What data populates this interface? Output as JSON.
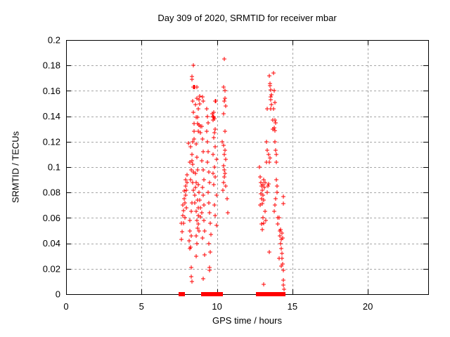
{
  "window": {
    "background": "#ffffff"
  },
  "colors": {
    "marker": "#ff0000",
    "grid": "#a6a6a6",
    "axis": "#000000",
    "text": "#000000"
  },
  "chart_data": {
    "type": "scatter",
    "title": "Day 309 of 2020, SRMTID for receiver mbar",
    "xlabel": "GPS time / hours",
    "ylabel": "SRMTID / TECUs",
    "xlim": [
      0,
      24
    ],
    "ylim": [
      0,
      0.2
    ],
    "grid": true,
    "legend_position": "none",
    "xticks": {
      "values": [
        0,
        5,
        10,
        15,
        20
      ],
      "labels": [
        "0",
        "5",
        "10",
        "15",
        "20"
      ]
    },
    "yticks": {
      "values": [
        0,
        0.02,
        0.04,
        0.06,
        0.08,
        0.1,
        0.12,
        0.14,
        0.16,
        0.18,
        0.2
      ],
      "labels": [
        "0",
        "0.02",
        "0.04",
        "0.06",
        "0.08",
        "0.1",
        "0.12",
        "0.14",
        "0.16",
        "0.18",
        "0.2"
      ]
    },
    "series": [
      {
        "marker": "plus",
        "color": "#ff0000",
        "points": [
          [
            7.62,
            0.043
          ],
          [
            7.66,
            0.056
          ],
          [
            7.7,
            0.049
          ],
          [
            7.72,
            0.062
          ],
          [
            7.75,
            0.07
          ],
          [
            7.77,
            0.056
          ],
          [
            7.8,
            0.066
          ],
          [
            7.82,
            0.075
          ],
          [
            7.84,
            0.081
          ],
          [
            7.86,
            0.06
          ],
          [
            7.88,
            0.072
          ],
          [
            7.9,
            0.085
          ],
          [
            7.92,
            0.078
          ],
          [
            7.94,
            0.09
          ],
          [
            7.96,
            0.068
          ],
          [
            7.98,
            0.082
          ],
          [
            8.0,
            0.094
          ],
          [
            8.02,
            0.088
          ],
          [
            8.12,
            0.119
          ],
          [
            8.15,
            0.042
          ],
          [
            8.18,
            0.036
          ],
          [
            8.2,
            0.05
          ],
          [
            8.2,
            0.104
          ],
          [
            8.22,
            0.058
          ],
          [
            8.24,
            0.116
          ],
          [
            8.25,
            0.037
          ],
          [
            8.25,
            0.09
          ],
          [
            8.28,
            0.046
          ],
          [
            8.28,
            0.098
          ],
          [
            8.29,
            0.021
          ],
          [
            8.3,
            0.014
          ],
          [
            8.3,
            0.065
          ],
          [
            8.31,
            0.021
          ],
          [
            8.32,
            0.072
          ],
          [
            8.33,
            0.105
          ],
          [
            8.34,
            0.01
          ],
          [
            8.34,
            0.171
          ],
          [
            8.36,
            0.11
          ],
          [
            8.36,
            0.169
          ],
          [
            8.38,
            0.088
          ],
          [
            8.38,
            0.152
          ],
          [
            8.4,
            0.102
          ],
          [
            8.4,
            0.12
          ],
          [
            8.42,
            0.082
          ],
          [
            8.42,
            0.18
          ],
          [
            8.43,
            0.163
          ],
          [
            8.44,
            0.096
          ],
          [
            8.45,
            0.143
          ],
          [
            8.46,
            0.128
          ],
          [
            8.48,
            0.134
          ],
          [
            8.48,
            0.163
          ],
          [
            8.5,
            0.122
          ],
          [
            8.52,
            0.078
          ],
          [
            8.55,
            0.072
          ],
          [
            8.55,
            0.163
          ],
          [
            8.56,
            0.084
          ],
          [
            8.58,
            0.095
          ],
          [
            8.58,
            0.149
          ],
          [
            8.6,
            0.046
          ],
          [
            8.6,
            0.065
          ],
          [
            8.6,
            0.139
          ],
          [
            8.62,
            0.03
          ],
          [
            8.62,
            0.088
          ],
          [
            8.62,
            0.118
          ],
          [
            8.65,
            0.04
          ],
          [
            8.65,
            0.058
          ],
          [
            8.65,
            0.154
          ],
          [
            8.66,
            0.108
          ],
          [
            8.67,
            0.163
          ],
          [
            8.7,
            0.052
          ],
          [
            8.7,
            0.074
          ],
          [
            8.7,
            0.098
          ],
          [
            8.7,
            0.139
          ],
          [
            8.72,
            0.134
          ],
          [
            8.74,
            0.068
          ],
          [
            8.75,
            0.055
          ],
          [
            8.75,
            0.146
          ],
          [
            8.78,
            0.062
          ],
          [
            8.78,
            0.086
          ],
          [
            8.78,
            0.128
          ],
          [
            8.8,
            0.05
          ],
          [
            8.8,
            0.153
          ],
          [
            8.82,
            0.08
          ],
          [
            8.82,
            0.133
          ],
          [
            8.85,
            0.15
          ],
          [
            8.85,
            0.156
          ],
          [
            8.86,
            0.074
          ],
          [
            8.88,
            0.127
          ],
          [
            8.9,
            0.068
          ],
          [
            8.9,
            0.132
          ],
          [
            8.92,
            0.061
          ],
          [
            9.0,
            0.064
          ],
          [
            9.0,
            0.105
          ],
          [
            9.0,
            0.132
          ],
          [
            9.04,
            0.155
          ],
          [
            9.05,
            0.044
          ],
          [
            9.05,
            0.084
          ],
          [
            9.05,
            0.122
          ],
          [
            9.08,
            0.098
          ],
          [
            9.09,
            0.012
          ],
          [
            9.09,
            0.152
          ],
          [
            9.1,
            0.078
          ],
          [
            9.1,
            0.112
          ],
          [
            9.12,
            0.058
          ],
          [
            9.12,
            0.09
          ],
          [
            9.15,
            0.07
          ],
          [
            9.16,
            0.05
          ],
          [
            9.18,
            0.031
          ],
          [
            9.3,
            0.146
          ],
          [
            9.33,
            0.128
          ],
          [
            9.35,
            0.104
          ],
          [
            9.35,
            0.14
          ],
          [
            9.38,
            0.12
          ],
          [
            9.4,
            0.08
          ],
          [
            9.4,
            0.135
          ],
          [
            9.42,
            0.112
          ],
          [
            9.45,
            0.072
          ],
          [
            9.45,
            0.096
          ],
          [
            9.46,
            0.04
          ],
          [
            9.5,
            0.021
          ],
          [
            9.5,
            0.064
          ],
          [
            9.5,
            0.088
          ],
          [
            9.52,
            0.019
          ],
          [
            9.55,
            0.033
          ],
          [
            9.55,
            0.056
          ],
          [
            9.6,
            0.047
          ],
          [
            9.7,
            0.142
          ],
          [
            9.72,
            0.095
          ],
          [
            9.74,
            0.14
          ],
          [
            9.75,
            0.11
          ],
          [
            9.75,
            0.137
          ],
          [
            9.78,
            0.139
          ],
          [
            9.79,
            0.143
          ],
          [
            9.8,
            0.086
          ],
          [
            9.8,
            0.123
          ],
          [
            9.82,
            0.138
          ],
          [
            9.85,
            0.07
          ],
          [
            9.85,
            0.1
          ],
          [
            9.85,
            0.127
          ],
          [
            9.88,
            0.13
          ],
          [
            9.88,
            0.152
          ],
          [
            9.9,
            0.062
          ],
          [
            9.9,
            0.092
          ],
          [
            9.9,
            0.116
          ],
          [
            9.93,
            0.152
          ],
          [
            9.95,
            0.054
          ],
          [
            9.95,
            0.078
          ],
          [
            9.95,
            0.106
          ],
          [
            10.35,
            0.12
          ],
          [
            10.4,
            0.082
          ],
          [
            10.42,
            0.101
          ],
          [
            10.44,
            0.142
          ],
          [
            10.45,
            0.088
          ],
          [
            10.45,
            0.163
          ],
          [
            10.46,
            0.117
          ],
          [
            10.48,
            0.098
          ],
          [
            10.48,
            0.185
          ],
          [
            10.5,
            0.092
          ],
          [
            10.5,
            0.11
          ],
          [
            10.5,
            0.152
          ],
          [
            10.52,
            0.128
          ],
          [
            10.52,
            0.16
          ],
          [
            10.55,
            0.095
          ],
          [
            10.55,
            0.113
          ],
          [
            10.55,
            0.154
          ],
          [
            10.58,
            0.085
          ],
          [
            10.58,
            0.148
          ],
          [
            10.6,
            0.106
          ],
          [
            10.65,
            0.075
          ],
          [
            10.7,
            0.064
          ],
          [
            12.8,
            0.1
          ],
          [
            12.85,
            0.092
          ],
          [
            12.88,
            0.07
          ],
          [
            12.9,
            0.079
          ],
          [
            12.9,
            0.088
          ],
          [
            12.95,
            0.055
          ],
          [
            12.95,
            0.075
          ],
          [
            12.95,
            0.085
          ],
          [
            13.0,
            0.051
          ],
          [
            13.0,
            0.071
          ],
          [
            13.0,
            0.082
          ],
          [
            13.05,
            0.06
          ],
          [
            13.05,
            0.078
          ],
          [
            13.05,
            0.086
          ],
          [
            13.1,
            0.008
          ],
          [
            13.1,
            0.056
          ],
          [
            13.1,
            0.074
          ],
          [
            13.1,
            0.09
          ],
          [
            13.15,
            0.084
          ],
          [
            13.18,
            0.065
          ],
          [
            13.2,
            0.088
          ],
          [
            13.22,
            0.058
          ],
          [
            13.28,
            0.104
          ],
          [
            13.3,
            0.104
          ],
          [
            13.3,
            0.12
          ],
          [
            13.33,
            0.146
          ],
          [
            13.35,
            0.08
          ],
          [
            13.35,
            0.113
          ],
          [
            13.36,
            0.085
          ],
          [
            13.4,
            0.11
          ],
          [
            13.42,
            0.087
          ],
          [
            13.45,
            0.104
          ],
          [
            13.47,
            0.033
          ],
          [
            13.47,
            0.172
          ],
          [
            13.5,
            0.107
          ],
          [
            13.51,
            0.166
          ],
          [
            13.52,
            0.164
          ],
          [
            13.55,
            0.146
          ],
          [
            13.56,
            0.161
          ],
          [
            13.57,
            0.153
          ],
          [
            13.58,
            0.155
          ],
          [
            13.6,
            0.149
          ],
          [
            13.62,
            0.157
          ],
          [
            13.7,
            0.137
          ],
          [
            13.72,
            0.13
          ],
          [
            13.75,
            0.146
          ],
          [
            13.75,
            0.174
          ],
          [
            13.79,
            0.16
          ],
          [
            13.8,
            0.065
          ],
          [
            13.8,
            0.131
          ],
          [
            13.82,
            0.137
          ],
          [
            13.84,
            0.151
          ],
          [
            13.85,
            0.07
          ],
          [
            13.85,
            0.129
          ],
          [
            13.86,
            0.12
          ],
          [
            13.89,
            0.135
          ],
          [
            13.9,
            0.075
          ],
          [
            13.9,
            0.113
          ],
          [
            13.92,
            0.104
          ],
          [
            13.95,
            0.09
          ],
          [
            13.95,
            0.11
          ],
          [
            13.98,
            0.085
          ],
          [
            14.0,
            0.08
          ],
          [
            14.02,
            0.06
          ],
          [
            14.05,
            0.055
          ],
          [
            14.1,
            0.028
          ],
          [
            14.1,
            0.06
          ],
          [
            14.15,
            0.05
          ],
          [
            14.18,
            0.046
          ],
          [
            14.2,
            0.051
          ],
          [
            14.22,
            0.04
          ],
          [
            14.25,
            0.022
          ],
          [
            14.25,
            0.043
          ],
          [
            14.28,
            0.036
          ],
          [
            14.3,
            0.032
          ],
          [
            14.3,
            0.048
          ],
          [
            14.32,
            0.028
          ],
          [
            14.35,
            0.024
          ],
          [
            14.35,
            0.044
          ],
          [
            14.38,
            0.019
          ],
          [
            14.38,
            0.071
          ],
          [
            14.4,
            0.011
          ],
          [
            14.4,
            0.077
          ],
          [
            14.42,
            0.007
          ],
          [
            14.45,
            0.004
          ]
        ]
      },
      {
        "marker": "square",
        "color": "#ff0000",
        "points": [
          [
            7.6,
            0
          ],
          [
            7.66,
            0
          ],
          [
            7.72,
            0
          ],
          [
            9.1,
            0
          ],
          [
            9.17,
            0
          ],
          [
            9.23,
            0
          ],
          [
            9.3,
            0
          ],
          [
            9.36,
            0
          ],
          [
            9.43,
            0
          ],
          [
            9.49,
            0
          ],
          [
            9.56,
            0
          ],
          [
            9.62,
            0
          ],
          [
            9.72,
            0
          ],
          [
            9.79,
            0
          ],
          [
            9.85,
            0
          ],
          [
            9.92,
            0
          ],
          [
            9.98,
            0
          ],
          [
            10.05,
            0
          ],
          [
            10.11,
            0
          ],
          [
            10.18,
            0
          ],
          [
            10.24,
            0
          ],
          [
            12.7,
            0
          ],
          [
            12.77,
            0
          ],
          [
            12.83,
            0
          ],
          [
            12.9,
            0
          ],
          [
            12.96,
            0
          ],
          [
            13.03,
            0
          ],
          [
            13.09,
            0
          ],
          [
            13.16,
            0
          ],
          [
            13.22,
            0
          ],
          [
            13.52,
            0
          ],
          [
            13.59,
            0
          ],
          [
            13.66,
            0
          ],
          [
            13.73,
            0
          ],
          [
            13.82,
            0
          ],
          [
            13.89,
            0
          ],
          [
            13.95,
            0
          ],
          [
            14.02,
            0
          ],
          [
            14.08,
            0
          ],
          [
            14.15,
            0
          ],
          [
            14.21,
            0
          ],
          [
            14.28,
            0
          ],
          [
            14.34,
            0
          ],
          [
            14.4,
            0
          ]
        ]
      }
    ]
  }
}
